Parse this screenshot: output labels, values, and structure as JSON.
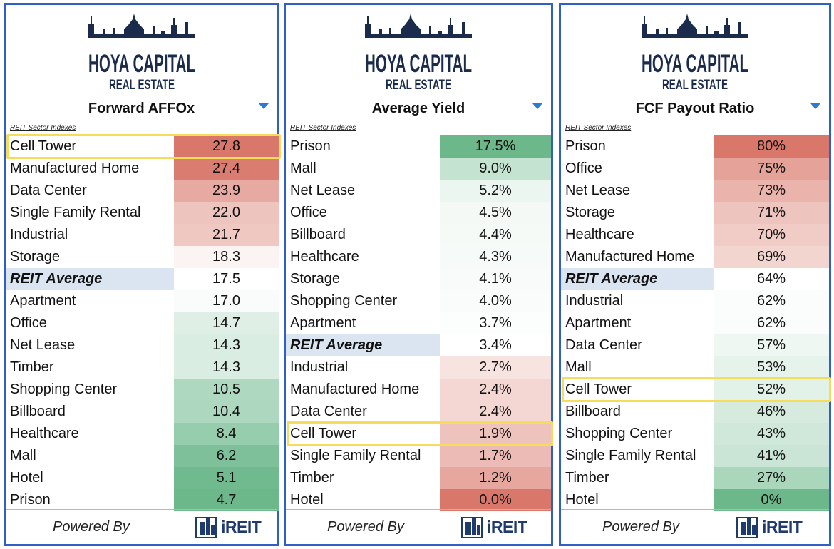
{
  "brand": {
    "line1": "HOYA CAPITAL",
    "line2": "REAL ESTATE"
  },
  "footer": {
    "powered_by": "Powered By",
    "ireit": "iREIT"
  },
  "colors": {
    "panel_border": "#2f5fc7",
    "highlight": "#f5dc5a",
    "high_bad": "#d9776a",
    "low_good": "#6cb88b",
    "average_row": "#dae5f1"
  },
  "chart_data": [
    {
      "type": "table",
      "title": "Forward AFFOx",
      "caption": "REIT Sector Indexes",
      "highlight": "Cell Tower",
      "color_direction": "high_red",
      "rows": [
        {
          "name": "Cell Tower",
          "value": 27.8,
          "display": "27.8"
        },
        {
          "name": "Manufactured Home",
          "value": 27.4,
          "display": "27.4"
        },
        {
          "name": "Data Center",
          "value": 23.9,
          "display": "23.9"
        },
        {
          "name": "Single Family Rental",
          "value": 22.0,
          "display": "22.0"
        },
        {
          "name": "Industrial",
          "value": 21.7,
          "display": "21.7"
        },
        {
          "name": "Storage",
          "value": 18.3,
          "display": "18.3"
        },
        {
          "name": "REIT Average",
          "value": 17.5,
          "display": "17.5",
          "average": true
        },
        {
          "name": "Apartment",
          "value": 17.0,
          "display": "17.0"
        },
        {
          "name": "Office",
          "value": 14.7,
          "display": "14.7"
        },
        {
          "name": "Net Lease",
          "value": 14.3,
          "display": "14.3"
        },
        {
          "name": "Timber",
          "value": 14.3,
          "display": "14.3"
        },
        {
          "name": "Shopping Center",
          "value": 10.5,
          "display": "10.5"
        },
        {
          "name": "Billboard",
          "value": 10.4,
          "display": "10.4"
        },
        {
          "name": "Healthcare",
          "value": 8.4,
          "display": "8.4"
        },
        {
          "name": "Mall",
          "value": 6.2,
          "display": "6.2"
        },
        {
          "name": "Hotel",
          "value": 5.1,
          "display": "5.1"
        },
        {
          "name": "Prison",
          "value": 4.7,
          "display": "4.7"
        }
      ]
    },
    {
      "type": "table",
      "title": "Average Yield",
      "caption": "REIT Sector Indexes",
      "highlight": "Cell Tower",
      "color_direction": "high_green",
      "rows": [
        {
          "name": "Prison",
          "value": 17.5,
          "display": "17.5%"
        },
        {
          "name": "Mall",
          "value": 9.0,
          "display": "9.0%"
        },
        {
          "name": "Net Lease",
          "value": 5.2,
          "display": "5.2%"
        },
        {
          "name": "Office",
          "value": 4.5,
          "display": "4.5%"
        },
        {
          "name": "Billboard",
          "value": 4.4,
          "display": "4.4%"
        },
        {
          "name": "Healthcare",
          "value": 4.3,
          "display": "4.3%"
        },
        {
          "name": "Storage",
          "value": 4.1,
          "display": "4.1%"
        },
        {
          "name": "Shopping Center",
          "value": 4.0,
          "display": "4.0%"
        },
        {
          "name": "Apartment",
          "value": 3.7,
          "display": "3.7%"
        },
        {
          "name": "REIT Average",
          "value": 3.4,
          "display": "3.4%",
          "average": true
        },
        {
          "name": "Industrial",
          "value": 2.7,
          "display": "2.7%"
        },
        {
          "name": "Manufactured Home",
          "value": 2.4,
          "display": "2.4%"
        },
        {
          "name": "Data Center",
          "value": 2.4,
          "display": "2.4%"
        },
        {
          "name": "Cell Tower",
          "value": 1.9,
          "display": "1.9%"
        },
        {
          "name": "Single Family Rental",
          "value": 1.7,
          "display": "1.7%"
        },
        {
          "name": "Timber",
          "value": 1.2,
          "display": "1.2%"
        },
        {
          "name": "Hotel",
          "value": 0.0,
          "display": "0.0%"
        }
      ]
    },
    {
      "type": "table",
      "title": "FCF Payout Ratio",
      "caption": "REIT Sector Indexes",
      "highlight": "Cell Tower",
      "color_direction": "high_red",
      "rows": [
        {
          "name": "Prison",
          "value": 80,
          "display": "80%"
        },
        {
          "name": "Office",
          "value": 75,
          "display": "75%"
        },
        {
          "name": "Net Lease",
          "value": 73,
          "display": "73%"
        },
        {
          "name": "Storage",
          "value": 71,
          "display": "71%"
        },
        {
          "name": "Healthcare",
          "value": 70,
          "display": "70%"
        },
        {
          "name": "Manufactured Home",
          "value": 69,
          "display": "69%"
        },
        {
          "name": "REIT Average",
          "value": 64,
          "display": "64%",
          "average": true
        },
        {
          "name": "Industrial",
          "value": 62,
          "display": "62%"
        },
        {
          "name": "Apartment",
          "value": 62,
          "display": "62%"
        },
        {
          "name": "Data Center",
          "value": 57,
          "display": "57%"
        },
        {
          "name": "Mall",
          "value": 53,
          "display": "53%"
        },
        {
          "name": "Cell Tower",
          "value": 52,
          "display": "52%"
        },
        {
          "name": "Billboard",
          "value": 46,
          "display": "46%"
        },
        {
          "name": "Shopping Center",
          "value": 43,
          "display": "43%"
        },
        {
          "name": "Single Family Rental",
          "value": 41,
          "display": "41%"
        },
        {
          "name": "Timber",
          "value": 27,
          "display": "27%"
        },
        {
          "name": "Hotel",
          "value": 0,
          "display": "0%"
        }
      ]
    }
  ]
}
